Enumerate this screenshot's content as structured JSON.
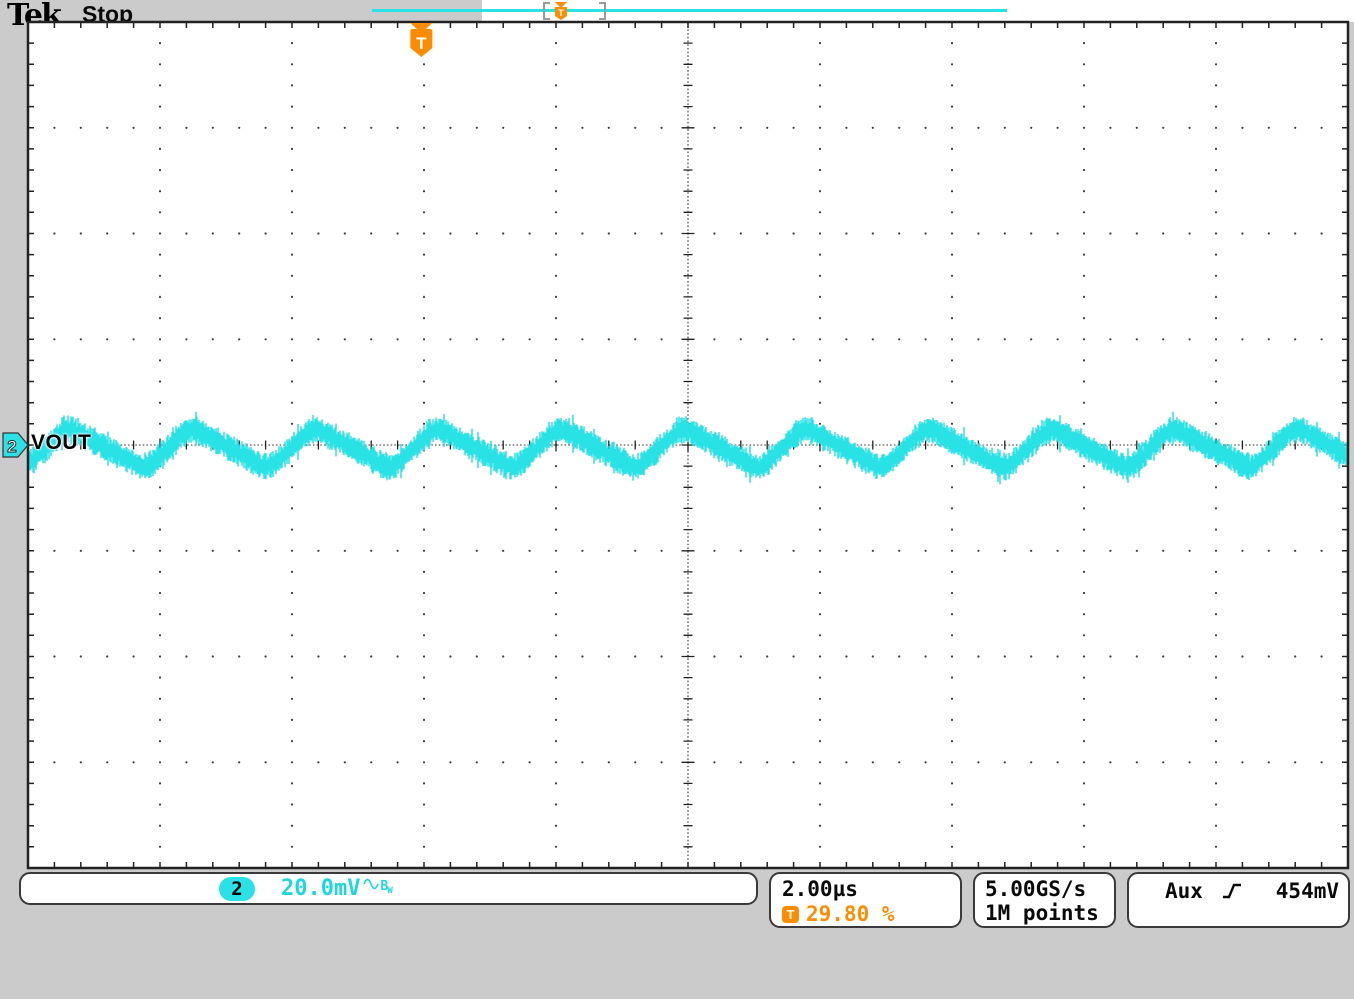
{
  "header": {
    "logo": "Tek",
    "acq_status": "Stop"
  },
  "record_view": {
    "trigger_symbol": "T"
  },
  "graticule": {
    "channel_marker": "2",
    "waveform_label": "VOUT",
    "trigger_symbol": "T"
  },
  "readouts": {
    "channel": {
      "number": "2",
      "scale": "20.0mV",
      "coupling": "ac",
      "bw_main": "B",
      "bw_sub": "W"
    },
    "horizontal": {
      "scale": "2.00µs",
      "trigger_symbol": "T",
      "trigger_position": "29.80 %"
    },
    "acquisition": {
      "rate": "5.00GS/s",
      "record_length": "1M points"
    },
    "trigger": {
      "source": "Aux",
      "slope": "rising-edge",
      "level": "454mV"
    }
  },
  "colors": {
    "trace": "#29E2E6",
    "trace_text": "#1CD8DE",
    "accent_orange": "#FF8C00",
    "background": "#CBCBCB",
    "grid": "#3C3C3C"
  },
  "chart_data": {
    "type": "line",
    "title": "Oscilloscope trace: VOUT output ripple",
    "series": [
      {
        "name": "VOUT",
        "channel": 2
      }
    ],
    "time_per_div_us": 2.0,
    "volts_per_div_mV": 20.0,
    "divisions_x": 10,
    "divisions_y": 8,
    "trigger_position_pct": 29.8,
    "waveform": {
      "shape": "asymmetric-triangle-ripple",
      "period_us": 1.86,
      "frequency_kHz": 538,
      "peak_to_peak_mV": 8,
      "noise_band_mV": 2.2,
      "fall_fraction": 0.64,
      "rise_fraction": 0.36,
      "mean_offset_div_from_center": -0.03,
      "crest_at_div": 4.95,
      "one_cycle": {
        "phase_from_crest": [
          0,
          0.1,
          0.2,
          0.3,
          0.4,
          0.5,
          0.6,
          0.64,
          0.7,
          0.8,
          0.9,
          1.0
        ],
        "ripple_mV": [
          4.0,
          2.75,
          1.5,
          0.25,
          -1.0,
          -2.25,
          -3.5,
          -4.0,
          -2.7,
          -0.4,
          1.8,
          4.0
        ]
      }
    }
  }
}
